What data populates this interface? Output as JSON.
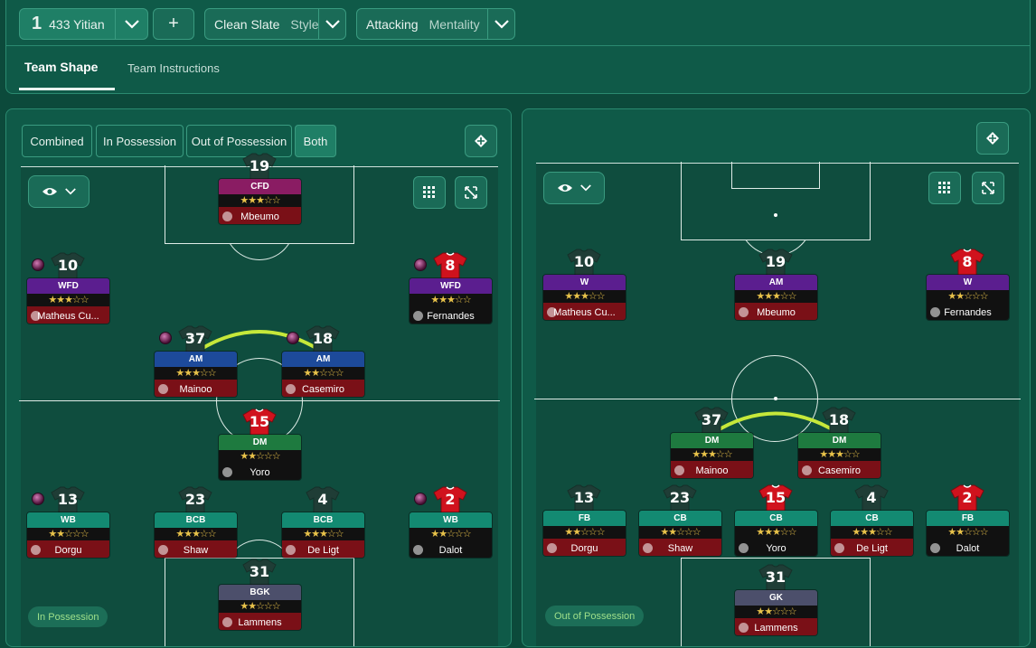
{
  "header": {
    "tactic_num": "1",
    "tactic_name": "433 Yitian",
    "add_label": "+",
    "style_value": "Clean Slate",
    "style_label": "Style",
    "mentality_value": "Attacking",
    "mentality_label": "Mentality"
  },
  "tabs": [
    {
      "label": "Team Shape"
    },
    {
      "label": "Team Instructions"
    }
  ],
  "filters": [
    "Combined",
    "In Possession",
    "Out of Possession",
    "Both"
  ],
  "left": {
    "badge": "In Possession",
    "players": [
      {
        "num": "19",
        "role": "CFD",
        "stars": "★★★☆☆",
        "name": "Mbeumo",
        "role_color": "#8a1c63",
        "name_color": "#7a1017",
        "shirt": "dark"
      },
      {
        "num": "10",
        "role": "WFD",
        "stars": "★★★☆☆",
        "name": "Matheus Cu...",
        "role_color": "#5b1e8f",
        "name_color": "#7a1017",
        "shirt": "dark"
      },
      {
        "num": "8",
        "role": "WFD",
        "stars": "★★★☆☆",
        "name": "Fernandes",
        "role_color": "#5b1e8f",
        "name_color": "#111111",
        "shirt": "red"
      },
      {
        "num": "37",
        "role": "AM",
        "stars": "★★★☆☆",
        "name": "Mainoo",
        "role_color": "#1d4a9a",
        "name_color": "#7a1017",
        "shirt": "dark"
      },
      {
        "num": "18",
        "role": "AM",
        "stars": "★★☆☆☆",
        "name": "Casemiro",
        "role_color": "#1d4a9a",
        "name_color": "#7a1017",
        "shirt": "dark"
      },
      {
        "num": "15",
        "role": "DM",
        "stars": "★★☆☆☆",
        "name": "Yoro",
        "role_color": "#1e7a3f",
        "name_color": "#111111",
        "shirt": "red"
      },
      {
        "num": "13",
        "role": "WB",
        "stars": "★★☆☆☆",
        "name": "Dorgu",
        "role_color": "#138a72",
        "name_color": "#7a1017",
        "shirt": "dark"
      },
      {
        "num": "23",
        "role": "BCB",
        "stars": "★★★☆☆",
        "name": "Shaw",
        "role_color": "#138a72",
        "name_color": "#7a1017",
        "shirt": "dark"
      },
      {
        "num": "4",
        "role": "BCB",
        "stars": "★★★☆☆",
        "name": "De Ligt",
        "role_color": "#138a72",
        "name_color": "#7a1017",
        "shirt": "dark"
      },
      {
        "num": "2",
        "role": "WB",
        "stars": "★★☆☆☆",
        "name": "Dalot",
        "role_color": "#138a72",
        "name_color": "#111111",
        "shirt": "red"
      },
      {
        "num": "31",
        "role": "BGK",
        "stars": "★★☆☆☆",
        "name": "Lammens",
        "role_color": "#4c4f6b",
        "name_color": "#7a1017",
        "shirt": "dark"
      }
    ]
  },
  "right": {
    "badge": "Out of Possession",
    "players": [
      {
        "num": "10",
        "role": "W",
        "stars": "★★★☆☆",
        "name": "Matheus Cu...",
        "role_color": "#5b1e8f",
        "name_color": "#7a1017",
        "shirt": "dark"
      },
      {
        "num": "19",
        "role": "AM",
        "stars": "★★★☆☆",
        "name": "Mbeumo",
        "role_color": "#5b1e8f",
        "name_color": "#7a1017",
        "shirt": "dark"
      },
      {
        "num": "8",
        "role": "W",
        "stars": "★★☆☆☆",
        "name": "Fernandes",
        "role_color": "#5b1e8f",
        "name_color": "#111111",
        "shirt": "red"
      },
      {
        "num": "37",
        "role": "DM",
        "stars": "★★★☆☆",
        "name": "Mainoo",
        "role_color": "#1e7a3f",
        "name_color": "#7a1017",
        "shirt": "dark"
      },
      {
        "num": "18",
        "role": "DM",
        "stars": "★★★☆☆",
        "name": "Casemiro",
        "role_color": "#1e7a3f",
        "name_color": "#7a1017",
        "shirt": "dark"
      },
      {
        "num": "13",
        "role": "FB",
        "stars": "★★☆☆☆",
        "name": "Dorgu",
        "role_color": "#138a72",
        "name_color": "#7a1017",
        "shirt": "dark"
      },
      {
        "num": "23",
        "role": "CB",
        "stars": "★★☆☆☆",
        "name": "Shaw",
        "role_color": "#138a72",
        "name_color": "#7a1017",
        "shirt": "dark"
      },
      {
        "num": "15",
        "role": "CB",
        "stars": "★★★☆☆",
        "name": "Yoro",
        "role_color": "#138a72",
        "name_color": "#111111",
        "shirt": "red"
      },
      {
        "num": "4",
        "role": "CB",
        "stars": "★★★☆☆",
        "name": "De Ligt",
        "role_color": "#138a72",
        "name_color": "#7a1017",
        "shirt": "dark"
      },
      {
        "num": "2",
        "role": "FB",
        "stars": "★★☆☆☆",
        "name": "Dalot",
        "role_color": "#138a72",
        "name_color": "#111111",
        "shirt": "red"
      },
      {
        "num": "31",
        "role": "GK",
        "stars": "★★☆☆☆",
        "name": "Lammens",
        "role_color": "#4c4f6b",
        "name_color": "#7a1017",
        "shirt": "dark"
      }
    ]
  }
}
